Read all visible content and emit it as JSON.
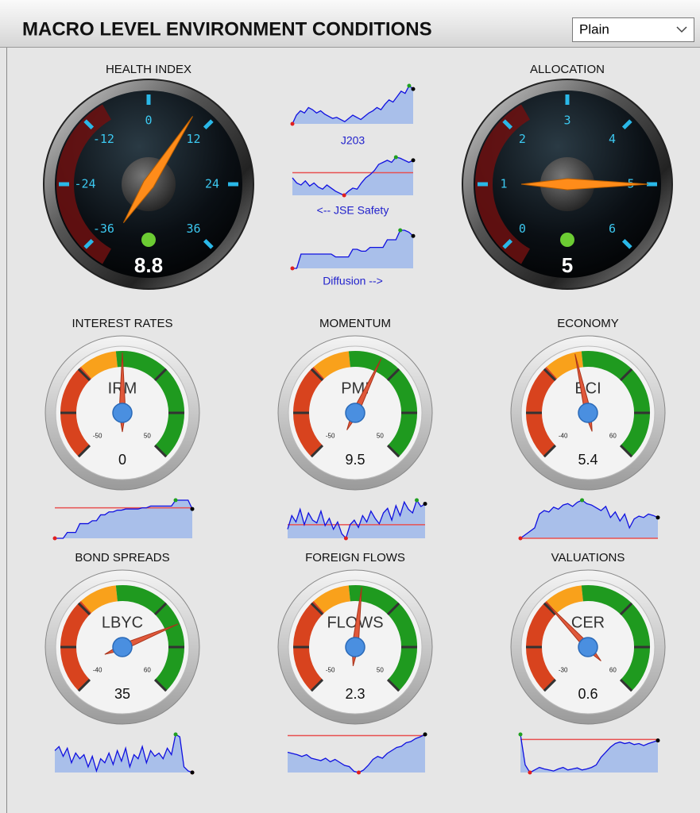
{
  "header": {
    "title": "MACRO LEVEL ENVIRONMENT CONDITIONS",
    "dropdown": "Plain"
  },
  "dial_gauges": [
    {
      "title": "HEALTH INDEX",
      "ticks": [
        -36,
        -24,
        -12,
        0,
        12,
        24,
        36
      ],
      "value": 8.8
    },
    {
      "title": "ALLOCATION",
      "ticks": [
        0,
        1,
        2,
        3,
        4,
        5,
        6
      ],
      "value": 5
    }
  ],
  "center_sparklines": [
    {
      "label": "J203",
      "values": [
        40,
        48,
        52,
        50,
        55,
        53,
        50,
        52,
        49,
        47,
        45,
        46,
        44,
        42,
        45,
        48,
        46,
        44,
        47,
        50,
        52,
        55,
        53,
        58,
        62,
        60,
        65,
        70,
        68,
        75,
        72
      ]
    },
    {
      "label": "<-- JSE Safety",
      "reference": 60,
      "values": [
        55,
        50,
        48,
        52,
        47,
        50,
        46,
        44,
        48,
        45,
        42,
        40,
        38,
        42,
        45,
        44,
        50,
        55,
        58,
        62,
        68,
        70,
        72,
        70,
        75,
        74,
        72,
        70,
        72
      ]
    },
    {
      "label": "Diffusion -->",
      "values": [
        40,
        40,
        55,
        55,
        55,
        55,
        55,
        55,
        55,
        55,
        52,
        52,
        52,
        52,
        60,
        60,
        58,
        58,
        62,
        62,
        62,
        62,
        70,
        70,
        70,
        80,
        80,
        78,
        74
      ]
    }
  ],
  "gauges": [
    {
      "title": "INTEREST RATES",
      "name": "IRM",
      "min": -50,
      "max": 50,
      "value": 0,
      "sparkline": {
        "reference": 82,
        "values": [
          30,
          30,
          30,
          40,
          40,
          40,
          55,
          55,
          55,
          60,
          60,
          70,
          70,
          75,
          75,
          78,
          78,
          80,
          80,
          80,
          80,
          82,
          82,
          85,
          85,
          85,
          85,
          85,
          85,
          95,
          95,
          95,
          95,
          80
        ]
      }
    },
    {
      "title": "MOMENTUM",
      "name": "PMI",
      "min": -50,
      "max": 50,
      "value": 9.5,
      "sparkline": {
        "reference": 45,
        "values": [
          40,
          55,
          48,
          62,
          45,
          58,
          50,
          47,
          60,
          44,
          52,
          40,
          48,
          35,
          30,
          45,
          50,
          42,
          55,
          48,
          60,
          52,
          46,
          58,
          63,
          50,
          66,
          55,
          70,
          62,
          58,
          72,
          65,
          68
        ]
      }
    },
    {
      "title": "ECONOMY",
      "name": "BCI",
      "min": -40,
      "max": 60,
      "value": 5.4,
      "sparkline": {
        "reference": 0,
        "values": [
          0,
          5,
          10,
          15,
          35,
          40,
          38,
          45,
          42,
          48,
          50,
          46,
          52,
          55,
          50,
          48,
          44,
          40,
          46,
          30,
          38,
          25,
          35,
          15,
          28,
          32,
          30,
          35,
          33,
          30
        ]
      }
    },
    {
      "title": "BOND SPREADS",
      "name": "LBYC",
      "min": -40,
      "max": 60,
      "value": 35,
      "sparkline": {
        "values": [
          55,
          60,
          48,
          58,
          40,
          52,
          45,
          50,
          35,
          48,
          30,
          45,
          40,
          52,
          38,
          55,
          42,
          58,
          35,
          50,
          45,
          60,
          40,
          55,
          48,
          52,
          45,
          58,
          50,
          75,
          72,
          35,
          30,
          28
        ]
      }
    },
    {
      "title": "FOREIGN FLOWS",
      "name": "FLOWS",
      "min": -50,
      "max": 50,
      "value": 2.3,
      "sparkline": {
        "reference": 90,
        "values": [
          62,
          60,
          58,
          55,
          58,
          52,
          50,
          48,
          52,
          46,
          50,
          45,
          40,
          38,
          30,
          28,
          32,
          40,
          50,
          55,
          52,
          60,
          65,
          70,
          72,
          78,
          80,
          85,
          88,
          92
        ]
      }
    },
    {
      "title": "VALUATIONS",
      "name": "CER",
      "min": -30,
      "max": 60,
      "value": 0.6,
      "sparkline": {
        "reference": 80,
        "values": [
          90,
          30,
          15,
          20,
          25,
          22,
          20,
          18,
          22,
          25,
          20,
          22,
          24,
          20,
          22,
          25,
          30,
          45,
          55,
          65,
          72,
          75,
          72,
          74,
          70,
          72,
          68,
          72,
          75,
          78
        ]
      }
    }
  ]
}
